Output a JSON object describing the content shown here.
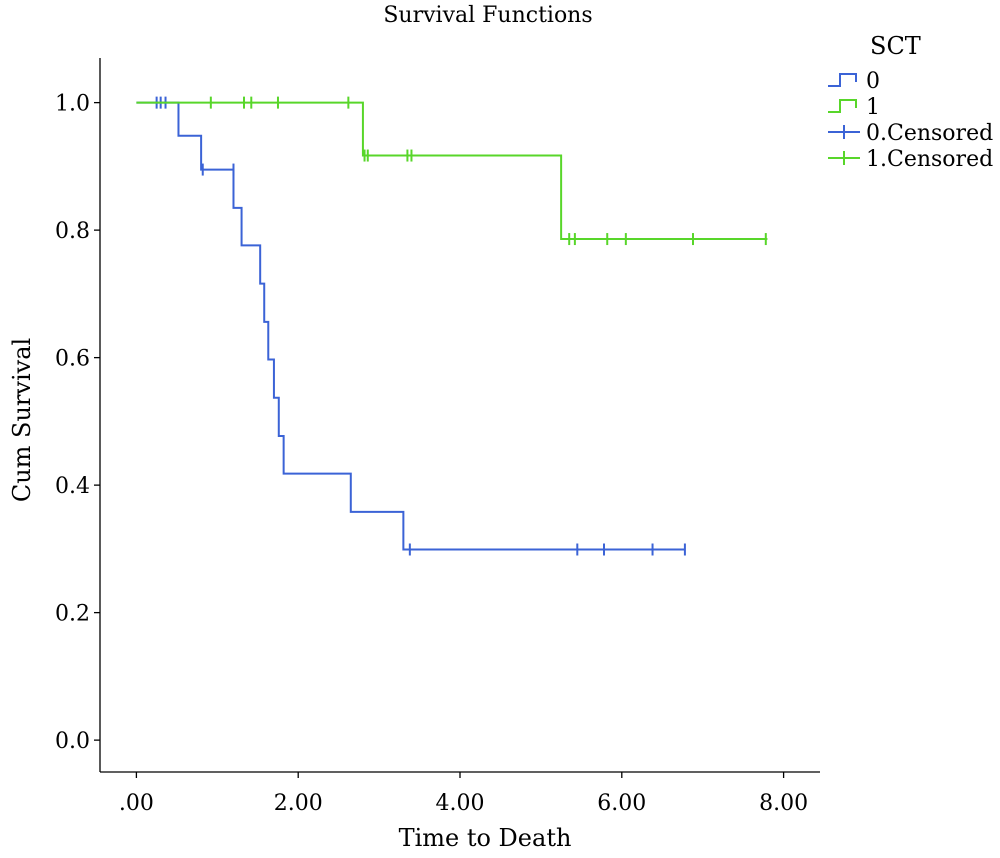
{
  "chart_data": {
    "type": "line",
    "title": "Survival Functions",
    "xlabel": "Time to Death",
    "ylabel": "Cum Survival",
    "xlim": [
      -0.45,
      8.45
    ],
    "ylim": [
      -0.05,
      1.07
    ],
    "x_ticks": [
      0,
      2,
      4,
      6,
      8
    ],
    "x_tick_labels": [
      ".00",
      "2.00",
      "4.00",
      "6.00",
      "8.00"
    ],
    "y_ticks": [
      0.0,
      0.2,
      0.4,
      0.6,
      0.8,
      1.0
    ],
    "y_tick_labels": [
      "0.0",
      "0.2",
      "0.4",
      "0.6",
      "0.8",
      "1.0"
    ],
    "grid": false,
    "legend": {
      "title": "SCT",
      "position": "top-right",
      "entries": [
        {
          "label": "0",
          "kind": "step",
          "series": 0
        },
        {
          "label": "1",
          "kind": "step",
          "series": 1
        },
        {
          "label": "0.Censored",
          "kind": "censor",
          "series": 0
        },
        {
          "label": "1.Censored",
          "kind": "censor",
          "series": 1
        }
      ]
    },
    "series": [
      {
        "name": "0",
        "color": "#3b63d6",
        "steps": [
          [
            0,
            1.0
          ],
          [
            0.52,
            0.948
          ],
          [
            0.8,
            0.895
          ],
          [
            1.2,
            0.835
          ],
          [
            1.3,
            0.776
          ],
          [
            1.53,
            0.716
          ],
          [
            1.58,
            0.656
          ],
          [
            1.63,
            0.597
          ],
          [
            1.7,
            0.537
          ],
          [
            1.76,
            0.477
          ],
          [
            1.82,
            0.418
          ],
          [
            2.65,
            0.358
          ],
          [
            3.3,
            0.299
          ],
          [
            6.78,
            0.299
          ]
        ],
        "censored": [
          [
            0.25,
            1.0
          ],
          [
            0.3,
            1.0
          ],
          [
            0.36,
            1.0
          ],
          [
            0.82,
            0.895
          ],
          [
            1.2,
            0.895
          ],
          [
            3.38,
            0.299
          ],
          [
            5.45,
            0.299
          ],
          [
            5.78,
            0.299
          ],
          [
            6.38,
            0.299
          ],
          [
            6.78,
            0.299
          ]
        ]
      },
      {
        "name": "1",
        "color": "#58d62a",
        "steps": [
          [
            0,
            1.0
          ],
          [
            2.8,
            0.917
          ],
          [
            5.25,
            0.786
          ],
          [
            7.8,
            0.786
          ]
        ],
        "censored": [
          [
            0.92,
            1.0
          ],
          [
            1.33,
            1.0
          ],
          [
            1.42,
            1.0
          ],
          [
            1.75,
            1.0
          ],
          [
            2.62,
            1.0
          ],
          [
            2.82,
            0.917
          ],
          [
            2.86,
            0.917
          ],
          [
            3.35,
            0.917
          ],
          [
            3.4,
            0.917
          ],
          [
            5.35,
            0.786
          ],
          [
            5.42,
            0.786
          ],
          [
            5.82,
            0.786
          ],
          [
            6.05,
            0.786
          ],
          [
            6.88,
            0.786
          ],
          [
            7.78,
            0.786
          ]
        ]
      }
    ]
  }
}
